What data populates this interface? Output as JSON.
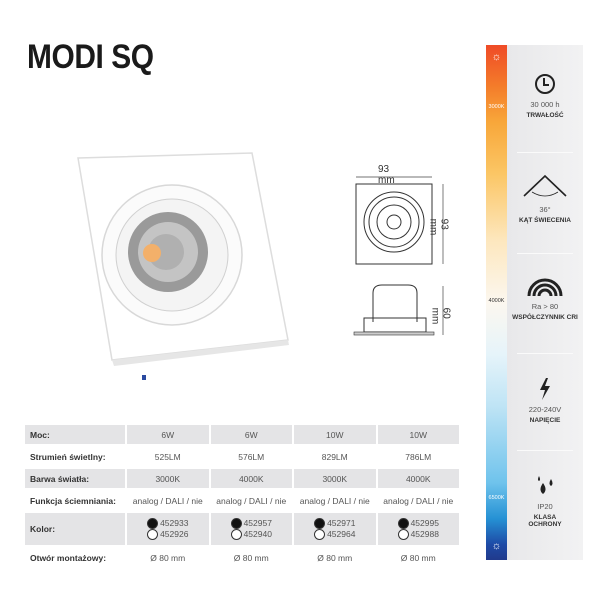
{
  "title": "MODI SQ",
  "drawing": {
    "width_label": "93 mm",
    "height_label": "93 mm",
    "depth_label": "60 mm"
  },
  "table": {
    "rows": [
      {
        "label": "Moc:",
        "values": [
          "6W",
          "6W",
          "10W",
          "10W"
        ]
      },
      {
        "label": "Strumień świetlny:",
        "values": [
          "525LM",
          "576LM",
          "829LM",
          "786LM"
        ]
      },
      {
        "label": "Barwa światła:",
        "values": [
          "3000K",
          "4000K",
          "3000K",
          "4000K"
        ]
      },
      {
        "label": "Funkcja ściemniania:",
        "values": [
          "analog / DALI / nie",
          "analog / DALI / nie",
          "analog / DALI / nie",
          "analog / DALI / nie"
        ]
      }
    ],
    "kolor": {
      "label": "Kolor:",
      "black": [
        "452933",
        "452957",
        "452971",
        "452995"
      ],
      "white": [
        "452926",
        "452940",
        "452964",
        "452988"
      ]
    },
    "otwor": {
      "label": "Otwór montażowy:",
      "values": [
        "Ø 80 mm",
        "Ø 80 mm",
        "Ø 80 mm",
        "Ø 80 mm"
      ]
    }
  },
  "color_bar": {
    "labels": [
      "3000K",
      "4000K",
      "6500K"
    ],
    "top_icon": "sun-icon",
    "bottom_icon": "sun-icon"
  },
  "features": [
    {
      "icon": "clock-icon",
      "value": "30 000 h",
      "name": "TRWAŁOŚĆ"
    },
    {
      "icon": "beam-angle-icon",
      "value": "36°",
      "name": "KĄT ŚWIECENIA"
    },
    {
      "icon": "rainbow-icon",
      "value": "Ra > 80",
      "name": "WSPÓŁCZYNNIK CRI"
    },
    {
      "icon": "lightning-icon",
      "value": "220-240V",
      "name": "NAPIĘCIE"
    },
    {
      "icon": "drops-icon",
      "value": "IP20",
      "name": "KLASA OCHRONY"
    }
  ]
}
